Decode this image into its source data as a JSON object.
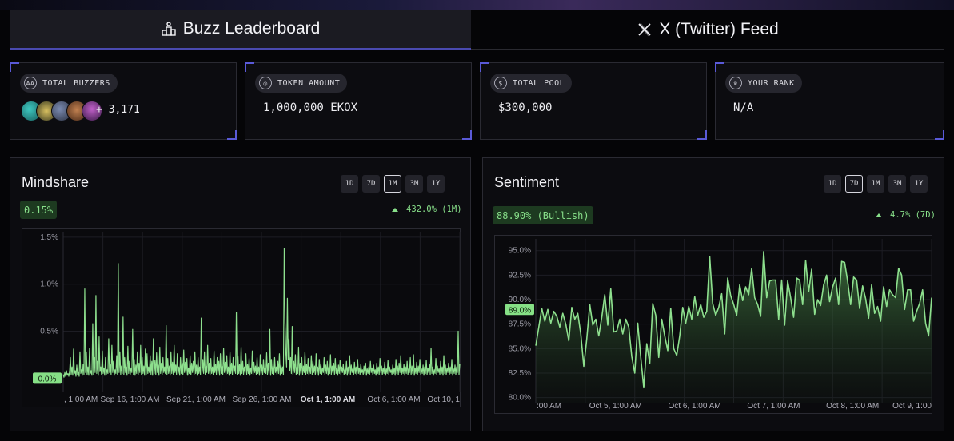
{
  "tabs": [
    {
      "label": "Buzz Leaderboard",
      "icon": "podium-icon",
      "active": true
    },
    {
      "label": "X (Twitter) Feed",
      "icon": "x-logo-icon",
      "active": false
    }
  ],
  "stats": {
    "total_buzzers": {
      "label": "TOTAL BUZZERS",
      "extra": "+ 3,171"
    },
    "token_amount": {
      "label": "TOKEN AMOUNT",
      "value": "1,000,000 EKOX"
    },
    "total_pool": {
      "label": "TOTAL POOL",
      "value": "$300,000"
    },
    "your_rank": {
      "label": "YOUR RANK",
      "value": "N/A"
    }
  },
  "colors": {
    "accent": "#5a5ad8",
    "positive": "#88e08a",
    "line": "#8ee08e"
  },
  "mindshare": {
    "title": "Mindshare",
    "timeframes": [
      "1D",
      "7D",
      "1M",
      "3M",
      "1Y"
    ],
    "active_timeframe": "1M",
    "current": "0.15%",
    "change": "432.0% (1M)",
    "current_marker": "0.0%"
  },
  "sentiment": {
    "title": "Sentiment",
    "timeframes": [
      "1D",
      "7D",
      "1M",
      "3M",
      "1Y"
    ],
    "active_timeframe": "7D",
    "current": "88.90% (Bullish)",
    "change": "4.7% (7D)",
    "current_marker": "89.0%"
  },
  "chart_data": [
    {
      "type": "line",
      "title": "Mindshare",
      "xlabel": "",
      "ylabel": "",
      "yticks": [
        "1.5%",
        "1.0%",
        "0.5%"
      ],
      "ylim": [
        -0.15,
        1.55
      ],
      "xticks": [
        ", 1:00 AM",
        "Sep 16, 1:00 AM",
        "Sep 21, 1:00 AM",
        "Sep 26, 1:00 AM",
        "Oct 1, 1:00 AM",
        "Oct 6, 1:00 AM",
        "Oct 10, 1"
      ],
      "xtick_bold": [
        false,
        false,
        false,
        false,
        true,
        false,
        false
      ],
      "grid": true,
      "series": [
        {
          "values": [
            0.04,
            0.01,
            0.06,
            0.02,
            0.08,
            0.03,
            0.05,
            0.02,
            0.07,
            0.22,
            0.04,
            0.12,
            0.03,
            0.31,
            0.05,
            0.08,
            0.02,
            0.14,
            0.04,
            0.06,
            0.02,
            0.28,
            0.05,
            0.09,
            0.03,
            0.15,
            0.04,
            0.95,
            0.06,
            0.28,
            0.04,
            0.12,
            0.03,
            0.32,
            0.05,
            0.08,
            0.03,
            0.58,
            0.04,
            0.22,
            0.06,
            0.88,
            0.05,
            0.18,
            0.03,
            0.44,
            0.07,
            0.12,
            0.04,
            0.29,
            0.05,
            0.11,
            0.03,
            0.22,
            0.04,
            0.09,
            0.05,
            0.42,
            0.06,
            0.15,
            0.04,
            0.35,
            0.06,
            0.18,
            0.03,
            0.09,
            0.05,
            0.24,
            0.04,
            1.22,
            0.06,
            0.28,
            0.04,
            0.13,
            0.05,
            0.65,
            0.04,
            0.22,
            0.06,
            0.12,
            0.03,
            0.34,
            0.05,
            0.18,
            0.04,
            0.11,
            0.06,
            0.52,
            0.04,
            0.2,
            0.03,
            0.14,
            0.05,
            0.28,
            0.04,
            0.16,
            0.06,
            0.35,
            0.04,
            0.22,
            0.05,
            0.13,
            0.03,
            0.31,
            0.04,
            0.26,
            0.05,
            0.12,
            0.06,
            0.24,
            0.04,
            0.18,
            0.03,
            0.42,
            0.05,
            0.19,
            0.04,
            0.27,
            0.06,
            0.14,
            0.03,
            0.33,
            0.05,
            0.16,
            0.04,
            0.22,
            0.06,
            0.12,
            0.05,
            0.56,
            0.04,
            0.21,
            0.05,
            0.13,
            0.03,
            0.28,
            0.05,
            0.17,
            0.04,
            0.35,
            0.06,
            0.14,
            0.04,
            0.26,
            0.05,
            0.12,
            0.03,
            0.22,
            0.05,
            0.16,
            0.04,
            0.3,
            0.06,
            0.17,
            0.04,
            0.21,
            0.03,
            0.11,
            0.05,
            0.24,
            0.04,
            0.16,
            0.06,
            0.18,
            0.04,
            0.28,
            0.05,
            0.14,
            0.03,
            0.22,
            0.05,
            0.12,
            0.04,
            0.64,
            0.06,
            0.2,
            0.05,
            0.28,
            0.04,
            0.13,
            0.06,
            0.35,
            0.05,
            0.16,
            0.03,
            0.21,
            0.05,
            0.12,
            0.04,
            0.29,
            0.06,
            0.15,
            0.04,
            0.22,
            0.05,
            0.18,
            0.03,
            0.26,
            0.05,
            0.13,
            0.04,
            0.32,
            0.06,
            0.17,
            0.04,
            0.24,
            0.05,
            0.12,
            0.03,
            0.28,
            0.05,
            0.16,
            0.04,
            0.22,
            0.06,
            0.13,
            0.05,
            0.7,
            0.04,
            0.24,
            0.05,
            0.15,
            0.03,
            0.33,
            0.05,
            0.18,
            0.04,
            0.12,
            0.06,
            0.26,
            0.04,
            0.15,
            0.05,
            0.21,
            0.03,
            0.11,
            0.05,
            0.29,
            0.04,
            0.17,
            0.06,
            0.13,
            0.04,
            0.22,
            0.05,
            0.12,
            0.03,
            0.25,
            0.05,
            0.14,
            0.04,
            0.2,
            0.06,
            0.11,
            0.05,
            0.27,
            0.04,
            0.16,
            0.05,
            0.52,
            0.03,
            0.2,
            0.05,
            0.13,
            0.04,
            0.22,
            0.06,
            0.12,
            0.04,
            0.18,
            0.05,
            0.26,
            0.03,
            0.14,
            0.05,
            0.12,
            0.04,
            1.38,
            0.6,
            0.28,
            0.12,
            0.85,
            0.2,
            0.42,
            0.08,
            0.22,
            0.05,
            0.55,
            0.04,
            0.18,
            0.06,
            0.25,
            0.04,
            0.12,
            0.05,
            0.33,
            0.03,
            0.16,
            0.05,
            0.22,
            0.04,
            0.13,
            0.06,
            0.28,
            0.04,
            0.15,
            0.05,
            0.21,
            0.03,
            0.12,
            0.05,
            0.24,
            0.04,
            0.18,
            0.06,
            0.13,
            0.04,
            0.26,
            0.05,
            0.12,
            0.03,
            0.2,
            0.05,
            0.15,
            0.04,
            0.11,
            0.06,
            0.22,
            0.04,
            0.14,
            0.05,
            0.18,
            0.03,
            0.12,
            0.05,
            0.25,
            0.04,
            0.13,
            0.06,
            0.16,
            0.04,
            0.21,
            0.05,
            0.11,
            0.03,
            0.14,
            0.05,
            0.19,
            0.04,
            0.12,
            0.06,
            0.15,
            0.04,
            0.09,
            0.05,
            0.18,
            0.03,
            0.12,
            0.05,
            0.24,
            0.04,
            0.14,
            0.06,
            0.1,
            0.04,
            0.17,
            0.05,
            0.12,
            0.03,
            0.2,
            0.05,
            0.11,
            0.04,
            0.15,
            0.06,
            0.09,
            0.04,
            0.13,
            0.05,
            0.16,
            0.03,
            0.1,
            0.05,
            0.12,
            0.04,
            0.18,
            0.06,
            0.11,
            0.04,
            0.14,
            0.05,
            0.09,
            0.03,
            0.16,
            0.05,
            0.12,
            0.04,
            0.21,
            0.06,
            0.13,
            0.04,
            0.11,
            0.05,
            0.17,
            0.03,
            0.1,
            0.05,
            0.19,
            0.04,
            0.12,
            0.06,
            0.09,
            0.04,
            0.14,
            0.05,
            0.11,
            0.03,
            0.2,
            0.05,
            0.13,
            0.04,
            0.16,
            0.06,
            0.24,
            0.04,
            0.11,
            0.05,
            0.15,
            0.03,
            0.12,
            0.05,
            0.18,
            0.04,
            0.1,
            0.06,
            0.22,
            0.04,
            0.13,
            0.05,
            0.25,
            0.03,
            0.11,
            0.05,
            0.17,
            0.04,
            0.13,
            0.06,
            0.2,
            0.04,
            0.1,
            0.05,
            0.14,
            0.03,
            0.12,
            0.05,
            0.19,
            0.04,
            0.11,
            0.06,
            0.15,
            0.04,
            0.32,
            0.05,
            0.12,
            0.03,
            0.09,
            0.05,
            0.21,
            0.04,
            0.13,
            0.06,
            0.1,
            0.04,
            0.18,
            0.05,
            0.12,
            0.03,
            0.24,
            0.05,
            0.14,
            0.04,
            0.11,
            0.06,
            0.16,
            0.04,
            0.12,
            0.05,
            0.2,
            0.03,
            0.1,
            0.05,
            0.14,
            0.04,
            0.12,
            0.06,
            0.5,
            0.04,
            0.15
          ]
        }
      ]
    },
    {
      "type": "area",
      "title": "Sentiment",
      "xlabel": "",
      "ylabel": "",
      "yticks": [
        "95.0%",
        "92.5%",
        "90.0%",
        "87.5%",
        "85.0%",
        "82.5%",
        "80.0%"
      ],
      "ylim": [
        79.4,
        96.2
      ],
      "xticks": [
        ":00 AM",
        "Oct 5, 1:00 AM",
        "Oct 6, 1:00 AM",
        "Oct 7, 1:00 AM",
        "Oct 8, 1:00 AM",
        "Oct 9, 1:00"
      ],
      "grid": true,
      "series": [
        {
          "values": [
            85.3,
            87.2,
            89.1,
            87.8,
            89.0,
            87.6,
            88.8,
            88.3,
            87.2,
            88.6,
            87.5,
            85.8,
            89.2,
            88.0,
            88.6,
            86.5,
            83.2,
            86.0,
            89.5,
            87.4,
            88.0,
            86.3,
            88.2,
            90.5,
            87.4,
            91.1,
            86.7,
            86.8,
            88.0,
            86.5,
            88.0,
            87.2,
            84.2,
            82.5,
            87.6,
            84.1,
            81.0,
            85.5,
            83.5,
            89.6,
            88.4,
            84.1,
            88.0,
            86.3,
            84.8,
            89.1,
            85.0,
            84.3,
            86.3,
            89.2,
            87.6,
            89.3,
            88.0,
            90.3,
            88.4,
            89.5,
            88.2,
            88.8,
            94.4,
            89.6,
            88.4,
            89.2,
            90.6,
            86.5,
            92.2,
            90.4,
            89.5,
            88.4,
            91.5,
            89.9,
            91.3,
            90.5,
            93.2,
            90.2,
            89.5,
            88.3,
            94.9,
            90.2,
            91.9,
            92.0,
            92.0,
            88.0,
            92.0,
            87.4,
            91.9,
            90.2,
            88.2,
            92.2,
            92.0,
            89.5,
            94.0,
            90.8,
            93.1,
            88.5,
            90.0,
            89.4,
            91.5,
            92.5,
            89.8,
            91.3,
            92.2,
            89.5,
            93.9,
            93.8,
            91.9,
            89.5,
            92.3,
            92.0,
            89.1,
            91.4,
            90.1,
            88.1,
            91.5,
            88.6,
            89.3,
            87.8,
            91.3,
            89.3,
            91.0,
            90.5,
            90.2,
            93.2,
            92.5,
            89.0,
            91.0,
            91.0,
            87.8,
            88.8,
            89.6,
            91.0,
            87.6,
            86.3,
            90.2
          ]
        }
      ]
    }
  ]
}
